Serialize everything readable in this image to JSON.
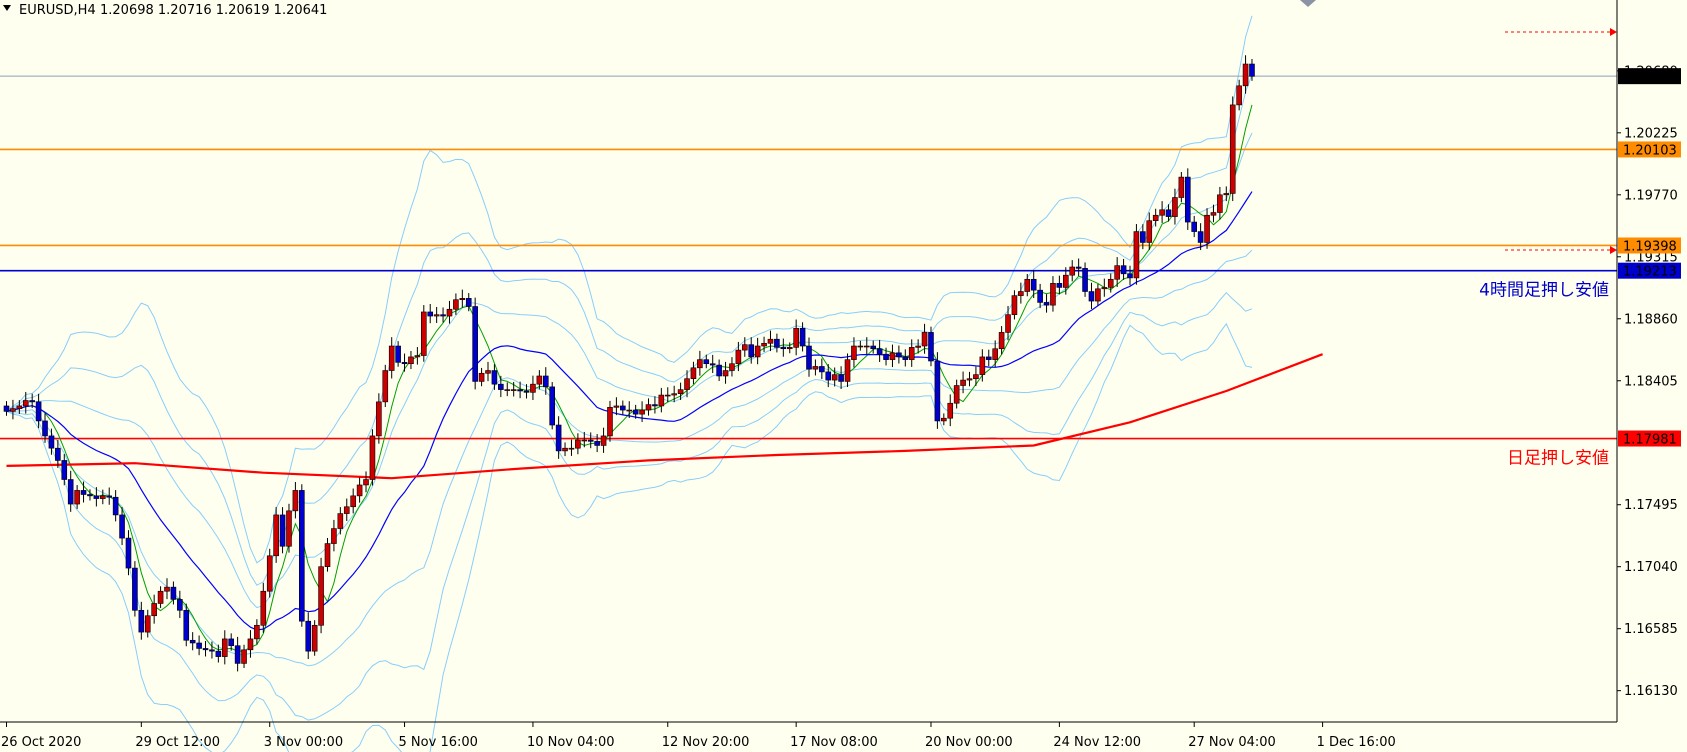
{
  "header": {
    "symbol": "EURUSD,H4",
    "ohlc": "1.20698 1.20716 1.20619 1.20641"
  },
  "chart_data": {
    "type": "candlestick",
    "symbol": "EURUSD",
    "timeframe": "H4",
    "ylim": [
      1.159,
      1.212
    ],
    "y_ticks": [
      1.1613,
      1.16585,
      1.1704,
      1.17495,
      1.18405,
      1.1886,
      1.19315,
      1.1977,
      1.20225,
      1.2068
    ],
    "x_ticks": [
      {
        "label": "26 Oct 2020",
        "bar": 0
      },
      {
        "label": "29 Oct 12:00",
        "bar": 21
      },
      {
        "label": "3 Nov 00:00",
        "bar": 41
      },
      {
        "label": "5 Nov 16:00",
        "bar": 62
      },
      {
        "label": "10 Nov 04:00",
        "bar": 82
      },
      {
        "label": "12 Nov 20:00",
        "bar": 103
      },
      {
        "label": "17 Nov 08:00",
        "bar": 123
      },
      {
        "label": "20 Nov 00:00",
        "bar": 144
      },
      {
        "label": "24 Nov 12:00",
        "bar": 164
      },
      {
        "label": "27 Nov 04:00",
        "bar": 185
      },
      {
        "label": "1 Dec 16:00",
        "bar": 205
      }
    ],
    "levels": [
      {
        "name": "current-price",
        "value": 1.20641,
        "label": "1.20641",
        "color": "#8aa0b5",
        "tag_bg": "#000000",
        "tag_fg": "#ffffff"
      },
      {
        "name": "resistance-upper",
        "value": 1.20103,
        "label": "1.20103",
        "color": "#ff8c00",
        "tag_bg": "#ff8c00",
        "tag_fg": "#000000"
      },
      {
        "name": "resistance-lower",
        "value": 1.19398,
        "label": "1.19398",
        "color": "#ff8c00",
        "tag_bg": "#ff8c00",
        "tag_fg": "#000000"
      },
      {
        "name": "support-4h",
        "value": 1.19213,
        "label": "1.19213",
        "color": "#0000cc",
        "tag_bg": "#0000cc",
        "tag_fg": "#ffffff",
        "annotation": "4時間足押し安値"
      },
      {
        "name": "support-daily",
        "value": 1.17981,
        "label": "1.17981",
        "color": "#ff0000",
        "tag_bg": "#ff0000",
        "tag_fg": "#ffffff",
        "annotation": "日足押し安値"
      }
    ],
    "up_color": "#cc0000",
    "down_color": "#0000cc",
    "ma_fast_color": "#00a000",
    "ma_mid_color": "#0000ff",
    "ma_slow_color": "#ff0000",
    "band_color": "#87cefa",
    "closes": [
      1.1818,
      1.182,
      1.1822,
      1.1826,
      1.1825,
      1.1811,
      1.18,
      1.1791,
      1.1782,
      1.1768,
      1.175,
      1.176,
      1.1757,
      1.1756,
      1.1754,
      1.1756,
      1.1755,
      1.1742,
      1.1725,
      1.1703,
      1.1672,
      1.1656,
      1.1668,
      1.1677,
      1.1686,
      1.1689,
      1.168,
      1.1672,
      1.165,
      1.1648,
      1.1644,
      1.1643,
      1.1642,
      1.1638,
      1.1651,
      1.1646,
      1.1633,
      1.1643,
      1.1651,
      1.1661,
      1.1686,
      1.1712,
      1.1742,
      1.1719,
      1.1745,
      1.176,
      1.1664,
      1.1642,
      1.1661,
      1.1704,
      1.1721,
      1.1732,
      1.1743,
      1.1748,
      1.1756,
      1.1764,
      1.1768,
      1.18,
      1.1825,
      1.1848,
      1.1866,
      1.1854,
      1.1853,
      1.1858,
      1.1859,
      1.1891,
      1.1888,
      1.1889,
      1.1888,
      1.1893,
      1.19,
      1.1901,
      1.1895,
      1.184,
      1.1846,
      1.1848,
      1.1838,
      1.1834,
      1.1834,
      1.1834,
      1.1833,
      1.1832,
      1.1838,
      1.1844,
      1.1836,
      1.1808,
      1.1789,
      1.1791,
      1.1791,
      1.1797,
      1.1797,
      1.1796,
      1.1793,
      1.18,
      1.1821,
      1.1822,
      1.1819,
      1.1819,
      1.1816,
      1.1819,
      1.1823,
      1.1822,
      1.183,
      1.183,
      1.1831,
      1.1834,
      1.1842,
      1.185,
      1.1856,
      1.1853,
      1.1852,
      1.1844,
      1.1848,
      1.1853,
      1.1863,
      1.1867,
      1.1858,
      1.1866,
      1.1868,
      1.1871,
      1.1865,
      1.1864,
      1.1865,
      1.1879,
      1.1866,
      1.1849,
      1.1851,
      1.1847,
      1.1841,
      1.1845,
      1.184,
      1.1856,
      1.1866,
      1.1866,
      1.1866,
      1.1864,
      1.186,
      1.1856,
      1.1861,
      1.1858,
      1.1856,
      1.1865,
      1.1866,
      1.1876,
      1.1855,
      1.1811,
      1.1813,
      1.1824,
      1.1837,
      1.1841,
      1.1842,
      1.1845,
      1.1858,
      1.1856,
      1.1864,
      1.1876,
      1.1889,
      1.1903,
      1.1906,
      1.1915,
      1.1907,
      1.1898,
      1.1896,
      1.1912,
      1.1909,
      1.1918,
      1.1924,
      1.1923,
      1.1906,
      1.1899,
      1.1908,
      1.1909,
      1.1915,
      1.1925,
      1.1919,
      1.1916,
      1.195,
      1.1942,
      1.1958,
      1.1962,
      1.1966,
      1.1961,
      1.1975,
      1.199,
      1.1957,
      1.195,
      1.1942,
      1.1962,
      1.1964,
      1.1977,
      1.1978,
      1.2043,
      1.2057,
      1.2073,
      1.2064
    ]
  }
}
